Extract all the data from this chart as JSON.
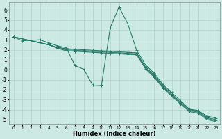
{
  "background_color": "#cce9e4",
  "grid_color": "#b0d4cc",
  "line_color": "#2a7a6a",
  "xlabel": "Humidex (Indice chaleur)",
  "xlim": [
    -0.5,
    23.5
  ],
  "ylim": [
    -5.5,
    6.8
  ],
  "xticks": [
    0,
    1,
    2,
    3,
    4,
    5,
    6,
    7,
    8,
    9,
    10,
    11,
    12,
    13,
    14,
    15,
    16,
    17,
    18,
    19,
    20,
    21,
    22,
    23
  ],
  "yticks": [
    -5,
    -4,
    -3,
    -2,
    -1,
    0,
    1,
    2,
    3,
    4,
    5,
    6
  ],
  "series": [
    {
      "x": [
        0,
        1,
        3,
        4,
        5,
        6,
        7,
        8,
        9,
        10,
        11,
        12,
        13,
        14,
        15,
        16,
        17,
        18,
        19,
        20,
        21,
        22,
        23
      ],
      "y": [
        3.3,
        2.9,
        3.0,
        2.7,
        2.4,
        2.2,
        0.4,
        0.05,
        -1.55,
        -1.6,
        4.2,
        6.3,
        4.6,
        1.95,
        0.5,
        -0.35,
        -1.5,
        -2.3,
        -3.1,
        -3.95,
        -4.1,
        -4.65,
        -4.85
      ]
    },
    {
      "x": [
        0,
        4,
        5,
        6,
        7,
        8,
        9,
        10,
        11,
        12,
        13,
        14,
        15,
        16,
        17,
        18,
        19,
        20,
        21,
        22,
        23
      ],
      "y": [
        3.3,
        2.5,
        2.25,
        2.1,
        2.05,
        2.0,
        1.95,
        1.9,
        1.85,
        1.8,
        1.75,
        1.7,
        0.3,
        -0.55,
        -1.65,
        -2.45,
        -3.25,
        -4.0,
        -4.15,
        -4.8,
        -5.0
      ]
    },
    {
      "x": [
        0,
        4,
        5,
        6,
        7,
        8,
        9,
        10,
        11,
        12,
        13,
        14,
        15,
        16,
        17,
        18,
        19,
        20,
        21,
        22,
        23
      ],
      "y": [
        3.3,
        2.5,
        2.2,
        2.0,
        1.95,
        1.9,
        1.85,
        1.8,
        1.75,
        1.7,
        1.65,
        1.6,
        0.2,
        -0.65,
        -1.75,
        -2.55,
        -3.35,
        -4.1,
        -4.25,
        -4.9,
        -5.1
      ]
    },
    {
      "x": [
        0,
        4,
        5,
        6,
        7,
        8,
        9,
        10,
        11,
        12,
        13,
        14,
        15,
        16,
        17,
        18,
        19,
        20,
        21,
        22,
        23
      ],
      "y": [
        3.3,
        2.5,
        2.15,
        1.9,
        1.85,
        1.8,
        1.75,
        1.7,
        1.65,
        1.6,
        1.55,
        1.5,
        0.1,
        -0.75,
        -1.85,
        -2.65,
        -3.45,
        -4.2,
        -4.35,
        -5.0,
        -5.2
      ]
    }
  ]
}
